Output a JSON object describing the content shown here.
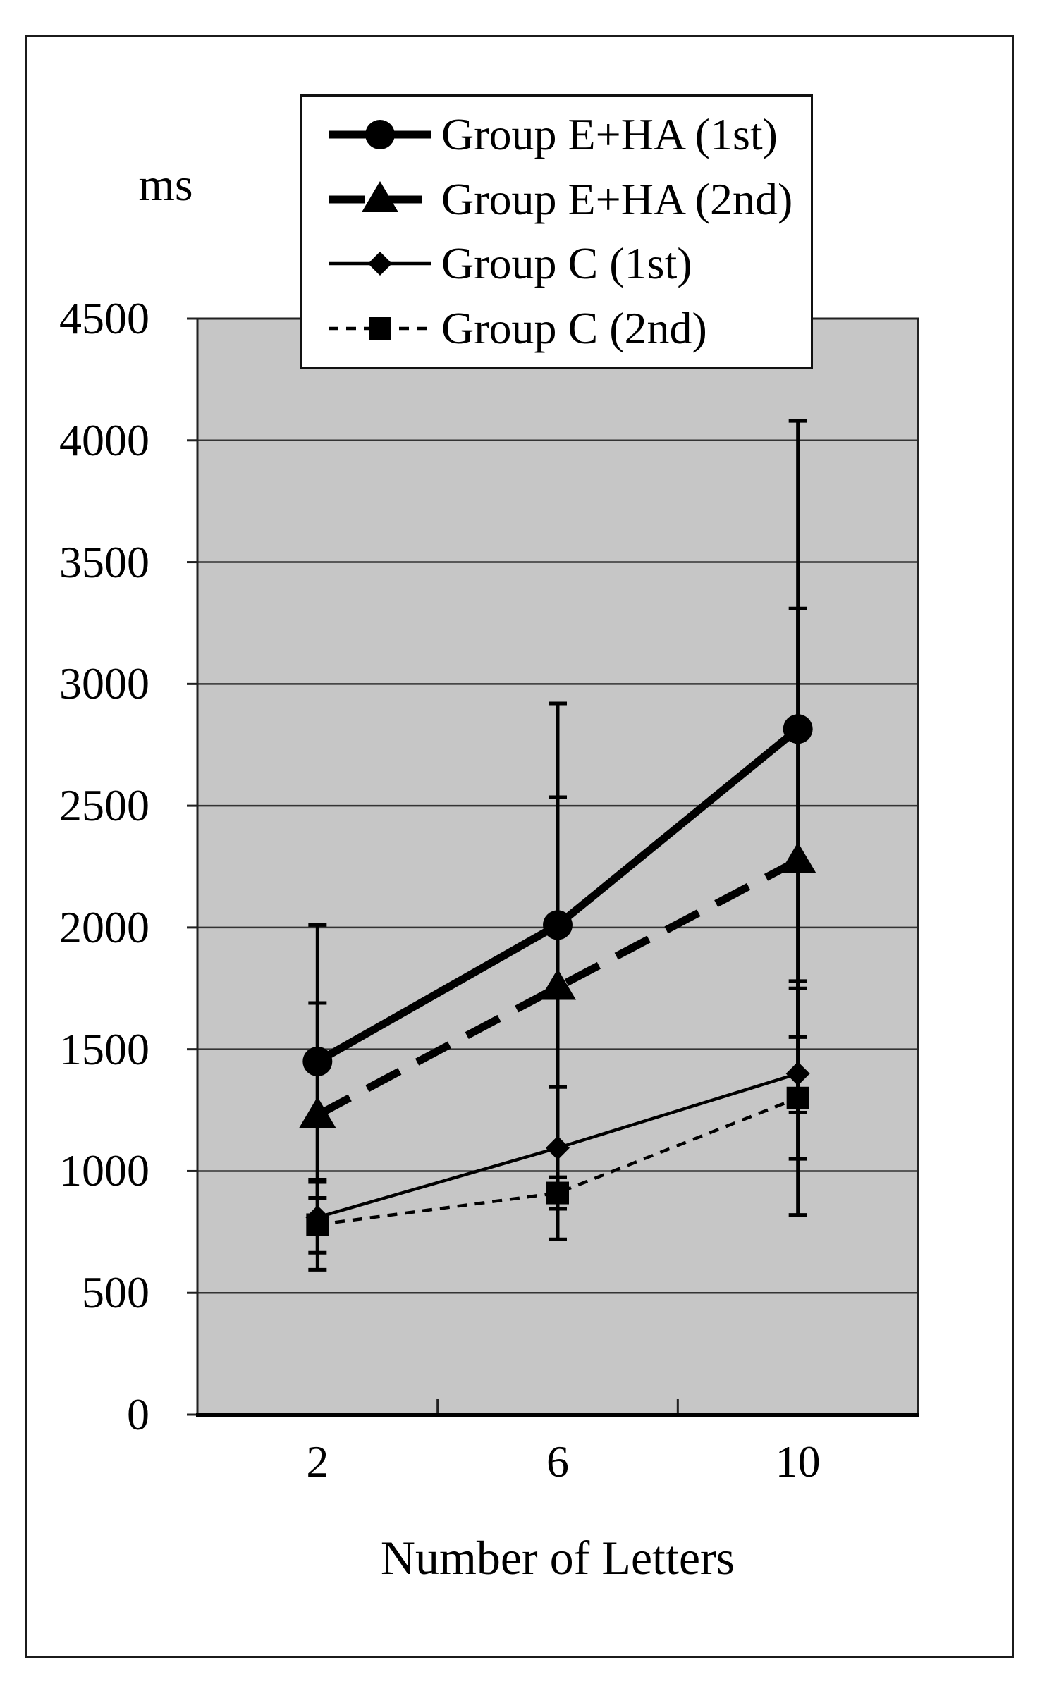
{
  "chart_data": {
    "type": "line",
    "title": "",
    "ylabel": "ms",
    "xlabel": "Number of Letters",
    "categories": [
      "2",
      "6",
      "10"
    ],
    "ylim": [
      0,
      4500
    ],
    "ytick_labels": [
      "4500",
      "4000",
      "3500",
      "3000",
      "2500",
      "2000",
      "1500",
      "1000",
      "500",
      "0"
    ],
    "grid": "horizontal",
    "legend_position": "top",
    "plot_bg": "#c6c6c6",
    "line_color": "#000000",
    "series": [
      {
        "name": "Group E+HA (1st)",
        "marker": "circle",
        "line": "solid",
        "thick": true,
        "values": [
          1450,
          2010,
          2815
        ],
        "errors": [
          560,
          910,
          1265
        ]
      },
      {
        "name": "Group E+HA (2nd)",
        "marker": "triangle",
        "line": "dashed",
        "thick": true,
        "values": [
          1230,
          1755,
          2275
        ],
        "errors": [
          460,
          780,
          1035
        ]
      },
      {
        "name": "Group C (1st)",
        "marker": "diamond",
        "line": "solid",
        "thick": false,
        "values": [
          810,
          1095,
          1400
        ],
        "errors": [
          145,
          250,
          350
        ]
      },
      {
        "name": "Group C (2nd)",
        "marker": "square",
        "line": "dotted",
        "thick": false,
        "values": [
          780,
          910,
          1300
        ],
        "errors": [
          185,
          190,
          480
        ]
      }
    ]
  }
}
